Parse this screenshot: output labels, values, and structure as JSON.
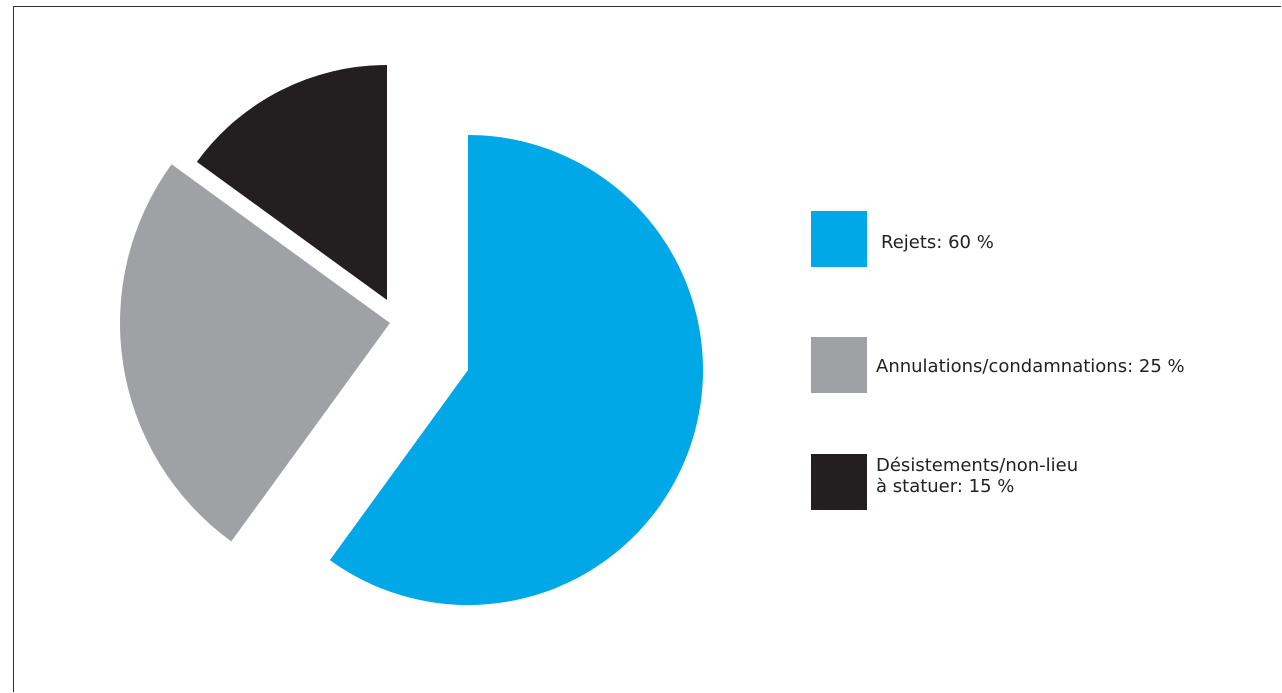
{
  "chart_data": {
    "type": "pie",
    "title": "",
    "slices": [
      {
        "label": "Rejets: 60 %",
        "value": 60,
        "color": "#00A8E8"
      },
      {
        "label": "Annulations/condamnations: 25 %",
        "value": 25,
        "color": "#9FA1A4"
      },
      {
        "label": "Désistements/non-lieu\nà statuer: 15 %",
        "value": 15,
        "color": "#231F20"
      }
    ],
    "legend_placement": "right",
    "exploded": true
  }
}
